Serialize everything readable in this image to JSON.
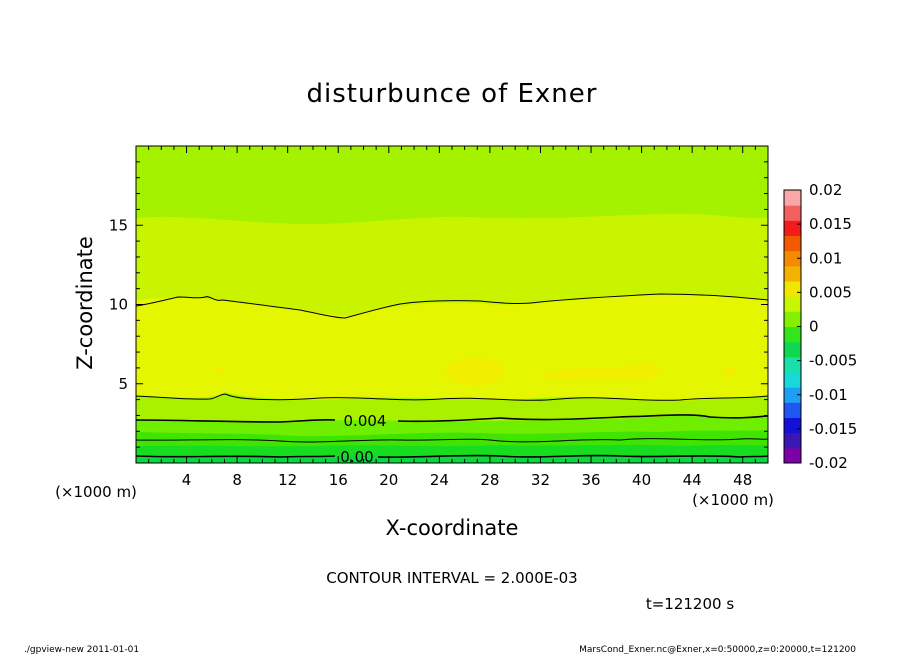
{
  "chart_data": {
    "type": "contour",
    "title": "disturbunce of Exner",
    "xlabel": "X-coordinate",
    "ylabel": "Z-coordinate",
    "x_unit": "(×1000 m)",
    "y_unit": "(×1000 m)",
    "xlim": [
      0,
      50
    ],
    "ylim": [
      0,
      20
    ],
    "x_ticks": [
      4,
      8,
      12,
      16,
      20,
      24,
      28,
      32,
      36,
      40,
      44,
      48
    ],
    "y_ticks": [
      5,
      10,
      15
    ],
    "contour_interval": "CONTOUR INTERVAL = 2.000E-03",
    "contour_labels": [
      {
        "text": "0.004",
        "x": 17.8,
        "z": 2.6
      },
      {
        "text": "0.00",
        "x": 17.3,
        "z": 0.4
      }
    ],
    "colorbar": {
      "ticks": [
        "0.02",
        "0.015",
        "0.01",
        "0.005",
        "0",
        "-0.005",
        "-0.01",
        "-0.015",
        "-0.02"
      ],
      "min": -0.02,
      "max": 0.02,
      "colors": [
        "#7b00a8",
        "#3a16b2",
        "#1410d6",
        "#1f55f0",
        "#1f9ff4",
        "#18d8da",
        "#17e0a8",
        "#0fd850",
        "#33e61c",
        "#82f000",
        "#c8f500",
        "#f0e600",
        "#f4b200",
        "#f48a00",
        "#f25a00",
        "#f21c1c",
        "#f46060",
        "#f8a8a8"
      ]
    },
    "time_label": "t=121200 s",
    "footer_left": "./gpview-new  2011-01-01",
    "footer_right": "MarsCond_Exner.nc@Exner,x=0:50000,z=0:20000,t=121200"
  }
}
